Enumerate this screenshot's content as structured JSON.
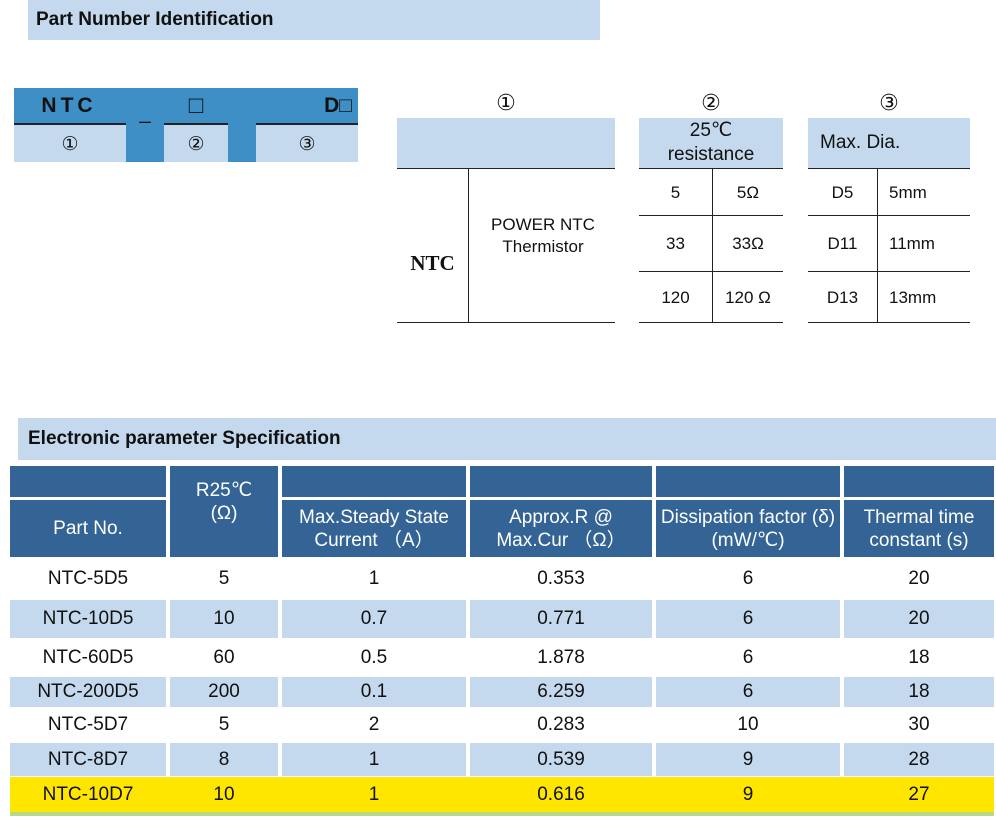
{
  "section1": {
    "title": "Part Number Identification"
  },
  "code": {
    "part1": "NTC",
    "sep": "_",
    "part2": "□",
    "part3": "D□",
    "num1": "①",
    "num2": "②",
    "num3": "③"
  },
  "table1": {
    "marker": "①",
    "code": "NTC",
    "description": "POWER NTC Thermistor"
  },
  "table2": {
    "marker": "②",
    "header": "25℃ resistance",
    "rows": [
      [
        "5",
        "5Ω"
      ],
      [
        "33",
        "33Ω"
      ],
      [
        "120",
        "120 Ω"
      ]
    ]
  },
  "table3": {
    "marker": "③",
    "header": "Max. Dia.",
    "rows": [
      [
        "D5",
        "5mm"
      ],
      [
        "D11",
        "11mm"
      ],
      [
        "D13",
        "13mm"
      ]
    ]
  },
  "section2": {
    "title": "Electronic parameter Specification"
  },
  "spec": {
    "headers": [
      "Part No.",
      "R25℃ (Ω)",
      "Max.Steady State Current （A）",
      "Approx.R @ Max.Cur （Ω）",
      "Dissipation factor (δ)(mW/℃)",
      "Thermal time constant (s)"
    ],
    "rows": [
      [
        "NTC-5D5",
        "5",
        "1",
        "0.353",
        "6",
        "20"
      ],
      [
        "NTC-10D5",
        "10",
        "0.7",
        "0.771",
        "6",
        "20"
      ],
      [
        "NTC-60D5",
        "60",
        "0.5",
        "1.878",
        "6",
        "18"
      ],
      [
        "NTC-200D5",
        "200",
        "0.1",
        "6.259",
        "6",
        "18"
      ],
      [
        "NTC-5D7",
        "5",
        "2",
        "0.283",
        "10",
        "30"
      ],
      [
        "NTC-8D7",
        "8",
        "1",
        "0.539",
        "9",
        "28"
      ],
      [
        "NTC-10D7",
        "10",
        "1",
        "0.616",
        "9",
        "27"
      ]
    ],
    "highlighted_row": 6,
    "colors": {
      "header": "#346496",
      "alt_row": "#c5d9ee",
      "highlight": "#ffe600"
    }
  }
}
